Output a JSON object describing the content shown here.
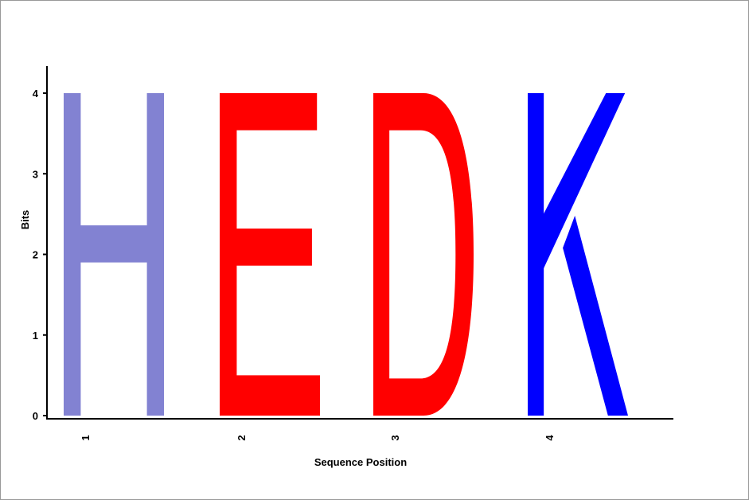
{
  "chart_data": {
    "type": "sequence-logo",
    "xlabel": "Sequence Position",
    "ylabel": "Bits",
    "ylim": [
      0,
      4
    ],
    "y_ticks": [
      "0",
      "1",
      "2",
      "3",
      "4"
    ],
    "positions": [
      {
        "label": "1",
        "letters": [
          {
            "letter": "H",
            "bits": 4.0,
            "color": "#8282d2"
          }
        ]
      },
      {
        "label": "2",
        "letters": [
          {
            "letter": "E",
            "bits": 4.0,
            "color": "#ff0000"
          }
        ]
      },
      {
        "label": "3",
        "letters": [
          {
            "letter": "D",
            "bits": 4.0,
            "color": "#ff0000"
          }
        ]
      },
      {
        "label": "4",
        "letters": [
          {
            "letter": "K",
            "bits": 4.0,
            "color": "#0000ff"
          }
        ]
      }
    ]
  }
}
